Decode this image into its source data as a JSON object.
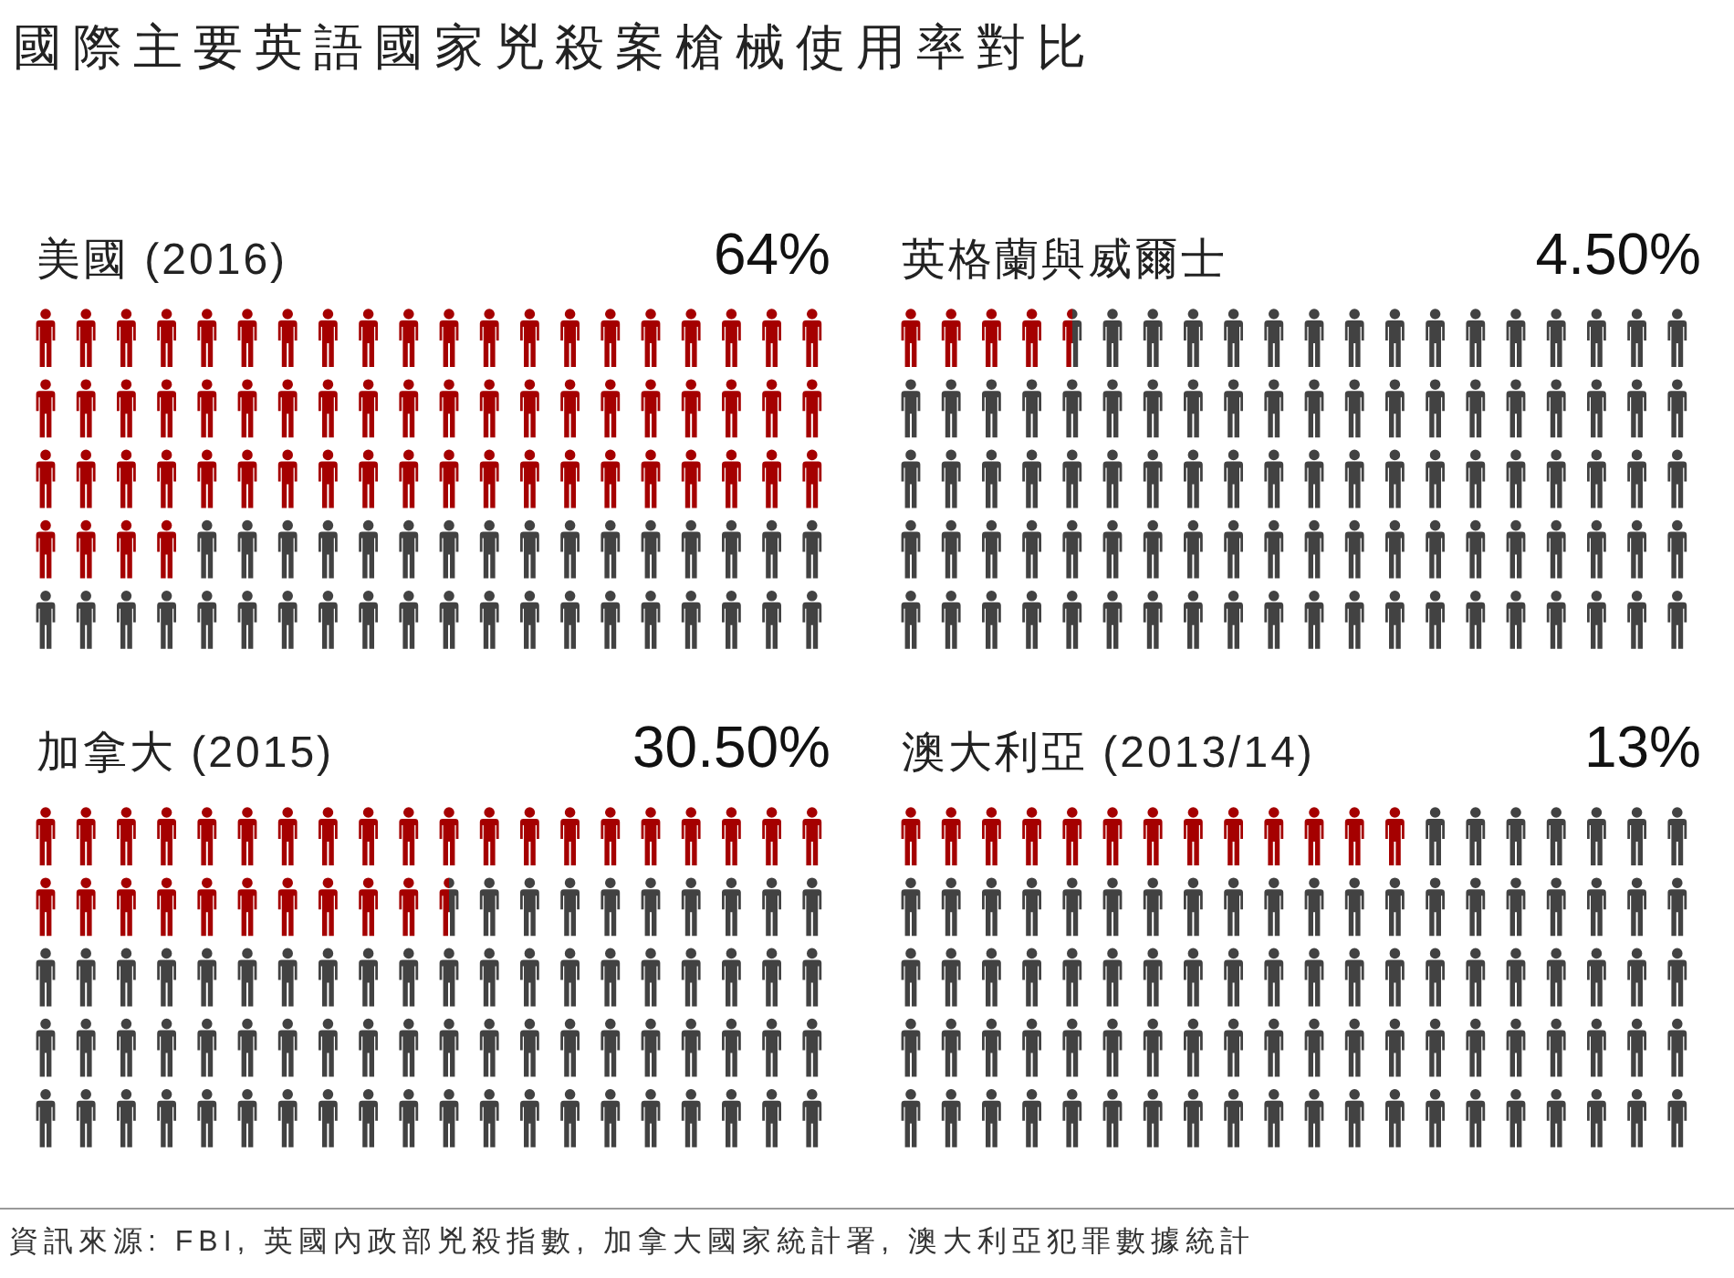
{
  "chart_data": [
    {
      "type": "other",
      "title": "國際主要英語國家兇殺案槍械使用率對比",
      "categories": [
        "美國 (2016)"
      ],
      "values": [
        64
      ],
      "value_labels": [
        "64%"
      ],
      "color": "#a50000"
    },
    {
      "type": "other",
      "categories": [
        "英格蘭與威爾士"
      ],
      "values": [
        4.5
      ],
      "value_labels": [
        "4.50%"
      ],
      "color": "#a50000"
    },
    {
      "type": "other",
      "categories": [
        "加拿大 (2015)"
      ],
      "values": [
        30.5
      ],
      "value_labels": [
        "30.50%"
      ],
      "color": "#a50000"
    },
    {
      "type": "other",
      "categories": [
        "澳大利亞 (2013/14)"
      ],
      "values": [
        13
      ],
      "value_labels": [
        "13%"
      ],
      "color": "#a50000",
      "annotations": [
        "資訊來源: FBI, 英國內政部兇殺指數, 加拿大國家統計署, 澳大利亞犯罪數據統計"
      ]
    }
  ]
}
